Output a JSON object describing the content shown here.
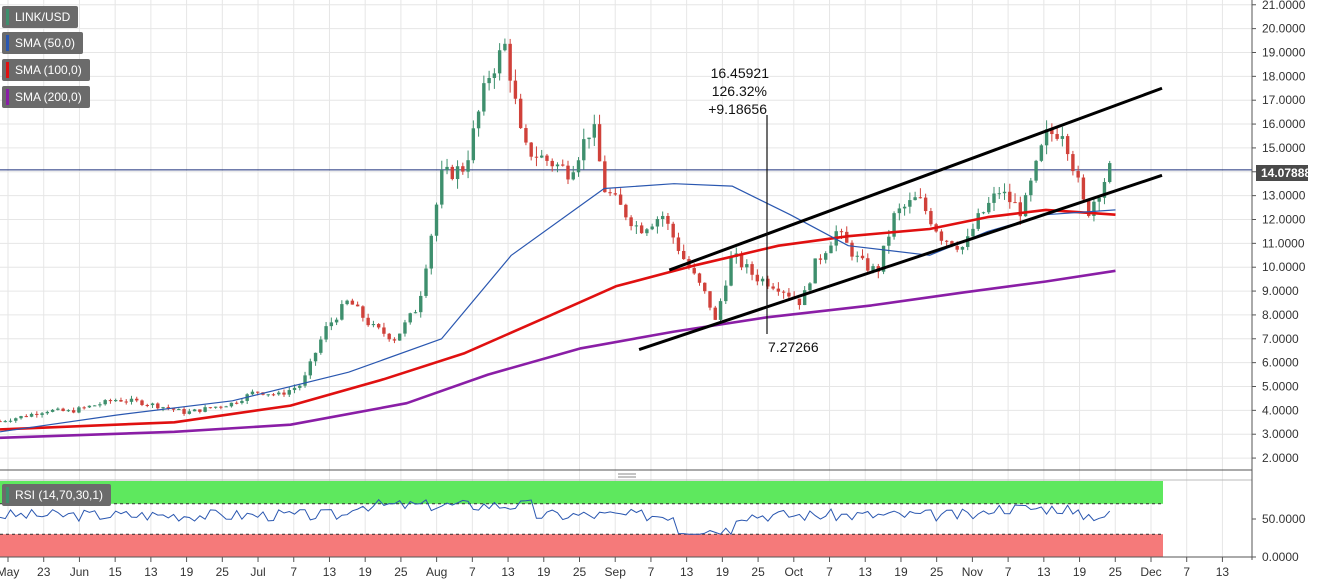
{
  "legend": {
    "pair": "LINK/USD",
    "sma50": "SMA (50,0)",
    "sma100": "SMA (100,0)",
    "sma200": "SMA (200,0)",
    "rsi": "RSI (14,70,30,1)"
  },
  "colors": {
    "up": "#3e8f6d",
    "down": "#d0413a",
    "sma50": "#2a57b0",
    "sma100": "#e01010",
    "sma200": "#8a1ea6",
    "rsi_line": "#2a57b0",
    "overbought": "#5ee85e",
    "oversold": "#f57a7a",
    "price_line": "#1b2f7a",
    "grid": "#e6e6e6"
  },
  "price_label": "14.07888",
  "annotation": {
    "high_value": "16.45921",
    "percent": "126.32%",
    "change": "+9.18656",
    "low_value": "7.27266"
  },
  "chart_data": {
    "type": "candlestick",
    "ylim": [
      1.5,
      21.2
    ],
    "y_ticks": [
      "21.0000",
      "20.0000",
      "19.0000",
      "18.0000",
      "17.0000",
      "16.0000",
      "15.0000",
      "14.0000",
      "13.0000",
      "12.0000",
      "11.0000",
      "10.0000",
      "9.0000",
      "8.0000",
      "7.0000",
      "6.0000",
      "5.0000",
      "4.0000",
      "3.0000",
      "2.0000"
    ],
    "x_ticks": [
      "May",
      "23",
      "Jun",
      "15",
      "13",
      "19",
      "25",
      "Jul",
      "7",
      "13",
      "19",
      "25",
      "Aug",
      "7",
      "13",
      "19",
      "25",
      "Sep",
      "7",
      "13",
      "19",
      "25",
      "Oct",
      "7",
      "13",
      "19",
      "25",
      "Nov",
      "7",
      "13",
      "19",
      "25",
      "Dec",
      "7",
      "13"
    ],
    "last_close": 14.07888,
    "channel": {
      "upper": [
        [
          0.576,
          9.88
        ],
        [
          1.0,
          17.5
        ]
      ],
      "lower": [
        [
          0.55,
          6.55
        ],
        [
          1.0,
          13.85
        ]
      ]
    },
    "price_anchors": [
      [
        0,
        3.55
      ],
      [
        0.02,
        3.75
      ],
      [
        0.04,
        4.0
      ],
      [
        0.06,
        3.95
      ],
      [
        0.08,
        4.2
      ],
      [
        0.1,
        4.45
      ],
      [
        0.12,
        4.35
      ],
      [
        0.14,
        4.15
      ],
      [
        0.16,
        3.9
      ],
      [
        0.18,
        4.1
      ],
      [
        0.2,
        4.3
      ],
      [
        0.22,
        4.8
      ],
      [
        0.24,
        4.65
      ],
      [
        0.26,
        5.1
      ],
      [
        0.28,
        7.4
      ],
      [
        0.3,
        8.6
      ],
      [
        0.32,
        7.5
      ],
      [
        0.34,
        7.0
      ],
      [
        0.36,
        8.4
      ],
      [
        0.38,
        13.8
      ],
      [
        0.4,
        14.2
      ],
      [
        0.42,
        18.0
      ],
      [
        0.435,
        19.3
      ],
      [
        0.45,
        15.0
      ],
      [
        0.47,
        14.5
      ],
      [
        0.49,
        14.0
      ],
      [
        0.51,
        16.0
      ],
      [
        0.52,
        13.3
      ],
      [
        0.55,
        11.6
      ],
      [
        0.57,
        12.2
      ],
      [
        0.59,
        10.2
      ],
      [
        0.61,
        8.6
      ],
      [
        0.615,
        7.6
      ],
      [
        0.63,
        10.5
      ],
      [
        0.65,
        9.6
      ],
      [
        0.67,
        9.2
      ],
      [
        0.69,
        8.5
      ],
      [
        0.7,
        10.0
      ],
      [
        0.72,
        11.5
      ],
      [
        0.74,
        10.2
      ],
      [
        0.755,
        9.8
      ],
      [
        0.77,
        12.2
      ],
      [
        0.79,
        12.9
      ],
      [
        0.81,
        11.3
      ],
      [
        0.83,
        10.8
      ],
      [
        0.84,
        11.9
      ],
      [
        0.86,
        13.2
      ],
      [
        0.88,
        12.3
      ],
      [
        0.9,
        15.5
      ],
      [
        0.915,
        15.8
      ],
      [
        0.935,
        12.2
      ],
      [
        0.955,
        14.1
      ]
    ],
    "sma50": [
      [
        0,
        3.1
      ],
      [
        0.1,
        3.8
      ],
      [
        0.2,
        4.4
      ],
      [
        0.3,
        5.6
      ],
      [
        0.38,
        7.0
      ],
      [
        0.44,
        10.5
      ],
      [
        0.52,
        13.3
      ],
      [
        0.58,
        13.5
      ],
      [
        0.63,
        13.4
      ],
      [
        0.68,
        12.2
      ],
      [
        0.73,
        10.9
      ],
      [
        0.8,
        10.5
      ],
      [
        0.85,
        11.5
      ],
      [
        0.9,
        12.2
      ],
      [
        0.96,
        12.4
      ]
    ],
    "sma100": [
      [
        0,
        3.2
      ],
      [
        0.15,
        3.5
      ],
      [
        0.25,
        4.2
      ],
      [
        0.33,
        5.3
      ],
      [
        0.4,
        6.4
      ],
      [
        0.47,
        7.9
      ],
      [
        0.53,
        9.2
      ],
      [
        0.6,
        10.1
      ],
      [
        0.67,
        10.9
      ],
      [
        0.73,
        11.3
      ],
      [
        0.8,
        11.6
      ],
      [
        0.85,
        12.1
      ],
      [
        0.9,
        12.4
      ],
      [
        0.96,
        12.2
      ]
    ],
    "sma200": [
      [
        0,
        2.85
      ],
      [
        0.15,
        3.1
      ],
      [
        0.25,
        3.4
      ],
      [
        0.35,
        4.3
      ],
      [
        0.42,
        5.5
      ],
      [
        0.5,
        6.6
      ],
      [
        0.58,
        7.3
      ],
      [
        0.66,
        7.9
      ],
      [
        0.75,
        8.4
      ],
      [
        0.83,
        8.95
      ],
      [
        0.9,
        9.4
      ],
      [
        0.96,
        9.85
      ]
    ],
    "rsi": {
      "ylim": [
        0,
        100
      ],
      "y_ticks": [
        "50.0000",
        "0.0000"
      ],
      "overbought": 70,
      "oversold": 30
    }
  }
}
